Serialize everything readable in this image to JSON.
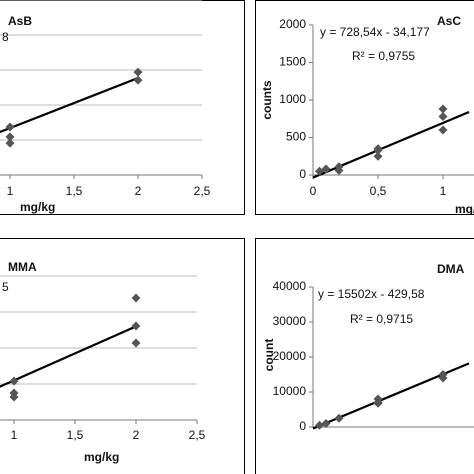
{
  "chart_data": [
    {
      "type": "scatter",
      "title": "AsB",
      "annotation": "8",
      "xlabel": "mg/kg",
      "x": [
        1,
        1,
        1,
        2,
        2
      ],
      "values": [
        1.37,
        1.09,
        0.91,
        2.94,
        2.71
      ],
      "color": "#555555",
      "trendline": {
        "x": [
          0.3,
          2
        ],
        "values": [
          0.34,
          2.77
        ]
      },
      "xlim": [
        0,
        2.5
      ],
      "ylim": [
        0,
        5
      ],
      "grid": true,
      "xticks": [
        1,
        {
          "value": 1.5,
          "label": "1,5"
        },
        2,
        {
          "value": 2.5,
          "label": "2,5"
        }
      ]
    },
    {
      "type": "scatter",
      "title": "AsC",
      "equation": "y = 728,54x - 34,177",
      "r_squared": "R² = 0,9755",
      "xlabel": "mg/kg",
      "ylabel": "counts",
      "x": [
        0.05,
        0.1,
        0.2,
        0.2,
        0.5,
        0.5,
        0.5,
        1,
        1,
        1
      ],
      "values": [
        50,
        80,
        60,
        110,
        330,
        350,
        250,
        880,
        780,
        600
      ],
      "color": "#555555",
      "trendline": {
        "x": [
          0,
          1.2
        ],
        "values": [
          -34,
          840
        ]
      },
      "xlim": [
        0,
        1.5
      ],
      "ylim": [
        0,
        2000
      ],
      "grid": false,
      "xticks": [
        0,
        {
          "value": 0.5,
          "label": "0,5"
        },
        1
      ],
      "yticks": [
        0,
        500,
        1000,
        1500,
        2000
      ]
    },
    {
      "type": "scatter",
      "title": "MMA",
      "annotation": "5",
      "xlabel": "mg/kg",
      "x": [
        1,
        1,
        1,
        2,
        2,
        2
      ],
      "values": [
        1.08,
        0.75,
        0.64,
        3.39,
        2.61,
        2.14
      ],
      "color": "#555555",
      "trendline": {
        "x": [
          0.3,
          2
        ],
        "values": [
          0.05,
          2.6
        ]
      },
      "xlim": [
        0,
        2.5
      ],
      "ylim": [
        0,
        4
      ],
      "grid": true,
      "xticks": [
        1,
        {
          "value": 1.5,
          "label": "1,5"
        },
        2,
        {
          "value": 2.5,
          "label": "2,5"
        }
      ]
    },
    {
      "type": "scatter",
      "title": "DMA",
      "equation": "y = 15502x - 429,58",
      "r_squared": "R² = 0,9715",
      "ylabel": "count",
      "x": [
        0.05,
        0.1,
        0.2,
        0.5,
        0.5,
        0.5,
        1,
        1
      ],
      "values": [
        500,
        1000,
        2500,
        8000,
        7000,
        6800,
        15000,
        14000
      ],
      "color": "#555555",
      "trendline": {
        "x": [
          0,
          1.2
        ],
        "values": [
          -430,
          18172
        ]
      },
      "xlim": [
        0,
        1.5
      ],
      "ylim": [
        0,
        40000
      ],
      "grid": false,
      "yticks": [
        0,
        10000,
        20000,
        30000,
        40000
      ]
    }
  ]
}
